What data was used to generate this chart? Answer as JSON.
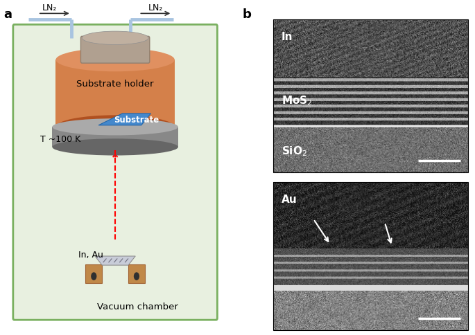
{
  "panel_a_label": "a",
  "panel_b_label": "b",
  "bg_color": "#ffffff",
  "chamber_bg": "#e8f0e0",
  "chamber_border": "#7ab060",
  "ln2_pipe_color": "#a8c4e0",
  "ln2_text": "LN₂",
  "holder_color_top": "#d4804a",
  "holder_color_side": "#c06030",
  "holder_shadow": "#b05020",
  "disk_color": "#909090",
  "disk_highlight": "#c0c0c0",
  "disk_shadow": "#606060",
  "substrate_color": "#5090d0",
  "substrate_holder_text": "Substrate holder",
  "substrate_text": "Substrate",
  "temp_text": "T ~100 K",
  "arrow_color": "red",
  "vacuum_text": "Vacuum chamber",
  "in_au_text": "In, Au",
  "boat_color": "#d0d0e0",
  "pedestal_color": "#c08848",
  "top_image_labels": [
    "In",
    "MoS₂",
    "SiO₂"
  ],
  "bottom_image_label": "Au"
}
